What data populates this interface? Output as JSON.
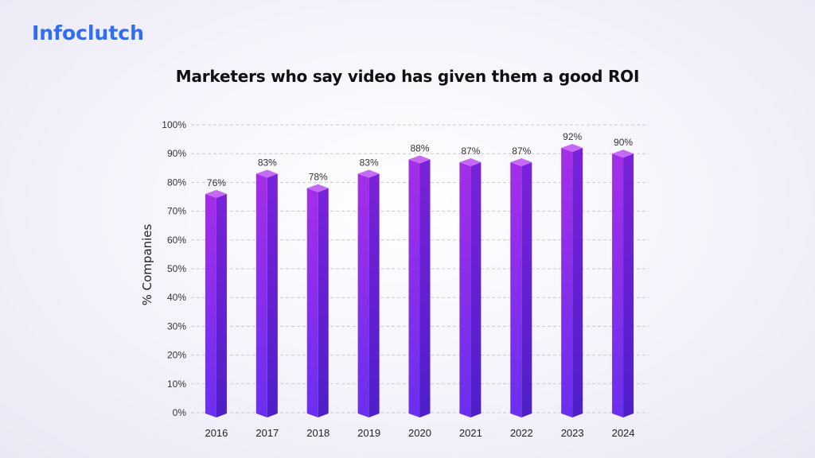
{
  "brand": {
    "logo_text": "Infoclutch",
    "logo_color": "#2f6df6"
  },
  "chart_data": {
    "type": "bar",
    "title": "Marketers who say video has given them a good ROI",
    "xlabel": "",
    "ylabel": "% Companies",
    "categories": [
      "2016",
      "2017",
      "2018",
      "2019",
      "2020",
      "2021",
      "2022",
      "2023",
      "2024"
    ],
    "values": [
      76,
      83,
      78,
      83,
      88,
      87,
      87,
      92,
      90
    ],
    "value_labels": [
      "76%",
      "83%",
      "78%",
      "83%",
      "88%",
      "87%",
      "87%",
      "92%",
      "90%"
    ],
    "ylim": [
      0,
      100
    ],
    "yticks": [
      0,
      10,
      20,
      30,
      40,
      50,
      60,
      70,
      80,
      90,
      100
    ],
    "ytick_labels": [
      "0%",
      "10%",
      "20%",
      "30%",
      "40%",
      "50%",
      "60%",
      "70%",
      "80%",
      "90%",
      "100%"
    ],
    "grid": true,
    "legend": "none",
    "colors": {
      "bar_front_top": "#a52ee8",
      "bar_front_bottom": "#6a2ff0",
      "bar_side": "#5a1fd0",
      "bar_top": "#c46af5"
    }
  }
}
